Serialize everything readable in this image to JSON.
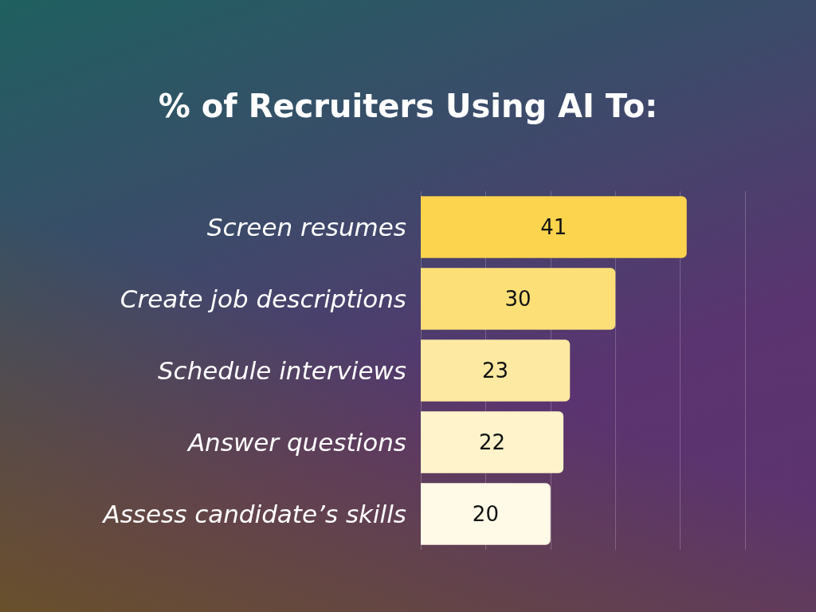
{
  "chart_data": {
    "type": "bar",
    "orientation": "horizontal",
    "title": "% of Recruiters Using AI To:",
    "categories": [
      "Screen resumes",
      "Create job descriptions",
      "Schedule interviews",
      "Answer questions",
      "Assess candidate’s skills"
    ],
    "values": [
      41,
      30,
      23,
      22,
      20
    ],
    "colors": [
      "#fdd44e",
      "#fddf78",
      "#fde9a2",
      "#fef3cb",
      "#fff9e8"
    ],
    "xlim": [
      0,
      50
    ],
    "xticks": [
      {
        "value": 0,
        "label": null
      },
      {
        "value": 10,
        "label": null
      },
      {
        "value": 20,
        "label": null
      },
      {
        "value": 30,
        "label": null
      },
      {
        "value": 40,
        "label": null
      },
      {
        "value": 50,
        "label": null
      }
    ],
    "tick_labels": "y",
    "grid": "x",
    "data_labels": true
  }
}
